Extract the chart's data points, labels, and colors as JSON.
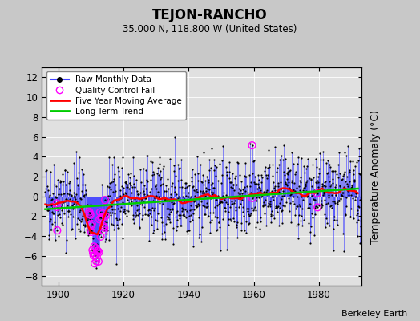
{
  "title": "TEJON-RANCHO",
  "subtitle": "35.000 N, 118.800 W (United States)",
  "ylabel": "Temperature Anomaly (°C)",
  "credit": "Berkeley Earth",
  "xlim": [
    1895,
    1993
  ],
  "ylim": [
    -9,
    13
  ],
  "yticks": [
    -8,
    -6,
    -4,
    -2,
    0,
    2,
    4,
    6,
    8,
    10,
    12
  ],
  "xticks": [
    1900,
    1920,
    1940,
    1960,
    1980
  ],
  "bg_color": "#c8c8c8",
  "plot_bg_color": "#e0e0e0",
  "grid_color": "#ffffff",
  "raw_line_color": "#4444ff",
  "raw_dot_color": "#000000",
  "qc_fail_color": "#ff00ff",
  "moving_avg_color": "#ff0000",
  "trend_color": "#00cc00",
  "seed": 42,
  "start_year": 1896,
  "end_year": 1992,
  "trend_slope": 0.005,
  "trend_intercept": -0.3
}
